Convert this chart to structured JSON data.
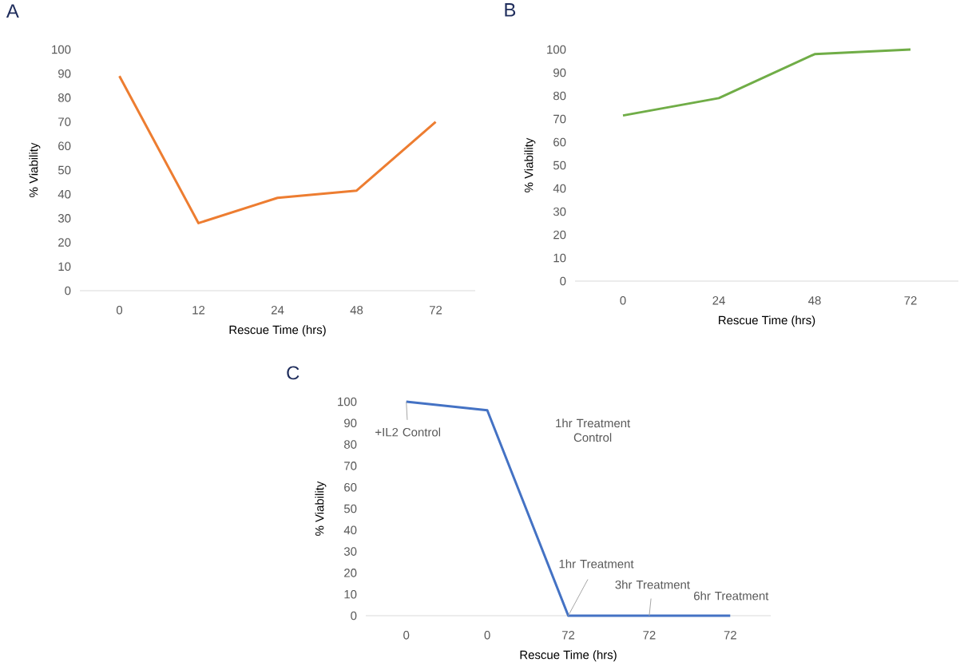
{
  "chart_data": [
    {
      "type": "line",
      "title": "A",
      "xlabel": "Rescue Time (hrs)",
      "ylabel": "% Viability",
      "categories": [
        "0",
        "12",
        "24",
        "48",
        "72"
      ],
      "values": [
        89,
        28,
        38.5,
        41.5,
        70
      ],
      "color": "#ed7d31",
      "ylim": [
        0,
        100
      ],
      "yticks": [
        0,
        10,
        20,
        30,
        40,
        50,
        60,
        70,
        80,
        90,
        100
      ]
    },
    {
      "type": "line",
      "title": "B",
      "xlabel": "Rescue Time (hrs)",
      "ylabel": "% Viability",
      "categories": [
        "0",
        "24",
        "48",
        "72"
      ],
      "values": [
        71.5,
        79,
        98,
        100
      ],
      "color": "#70ad47",
      "ylim": [
        0,
        100
      ],
      "yticks": [
        0,
        10,
        20,
        30,
        40,
        50,
        60,
        70,
        80,
        90,
        100
      ]
    },
    {
      "type": "line",
      "title": "C",
      "xlabel": "Rescue Time (hrs)",
      "ylabel": "% Viability",
      "categories": [
        "0",
        "0",
        "72",
        "72",
        "72"
      ],
      "values": [
        100,
        96,
        0,
        0,
        0
      ],
      "color": "#4472c4",
      "ylim": [
        0,
        100
      ],
      "yticks": [
        0,
        10,
        20,
        30,
        40,
        50,
        60,
        70,
        80,
        90,
        100
      ],
      "annotations": [
        {
          "text": "+IL2 Control",
          "x": "0",
          "y": 100
        },
        "1hr Treatment Control",
        {
          "text": "1hr Treatment",
          "x": "72",
          "y": 0
        },
        {
          "text": "3hr Treatment",
          "y": 0
        },
        {
          "text": "6hr Treatment",
          "y": 0
        }
      ]
    }
  ]
}
